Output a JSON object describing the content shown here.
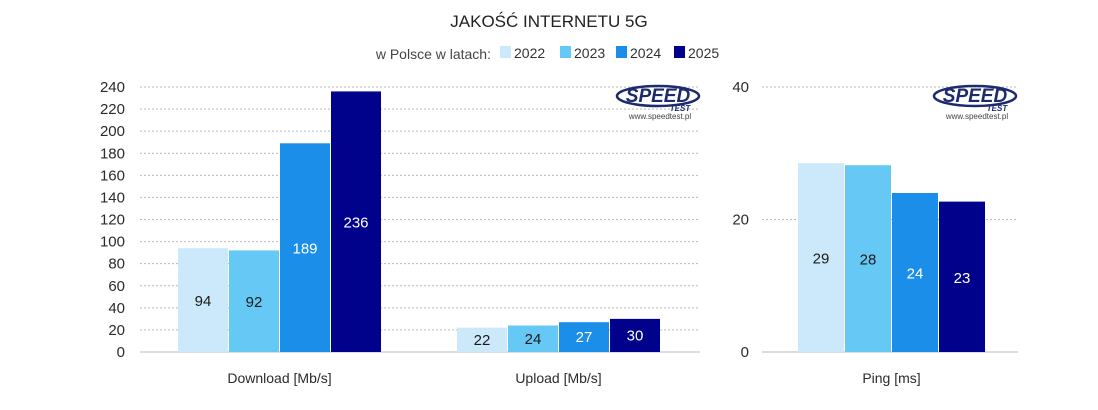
{
  "title": "JAKOŚĆ INTERNETU 5G",
  "subtitle": "w Polsce w latach:",
  "logo": {
    "text": "SPEED",
    "subtext": "TEST",
    "url": "www.speedtest.pl"
  },
  "colors": {
    "2022": "#cce9fb",
    "2023": "#66c8f5",
    "2024": "#1a8ee8",
    "2025": "#01028c"
  },
  "chart_data": [
    {
      "type": "bar",
      "category": "Download [Mb/s]",
      "ylim": [
        0,
        240
      ],
      "yticks": [
        "0",
        "20",
        "40",
        "60",
        "80",
        "100",
        "120",
        "140",
        "160",
        "180",
        "200",
        "220",
        "240"
      ],
      "series": [
        {
          "name": "2022",
          "value": 94,
          "label": "94"
        },
        {
          "name": "2023",
          "value": 92,
          "label": "92"
        },
        {
          "name": "2024",
          "value": 189,
          "label": "189"
        },
        {
          "name": "2025",
          "value": 236,
          "label": "236"
        }
      ]
    },
    {
      "type": "bar",
      "category": "Upload [Mb/s]",
      "ylim": [
        0,
        240
      ],
      "series": [
        {
          "name": "2022",
          "value": 22,
          "label": "22"
        },
        {
          "name": "2023",
          "value": 24,
          "label": "24"
        },
        {
          "name": "2024",
          "value": 27,
          "label": "27"
        },
        {
          "name": "2025",
          "value": 30,
          "label": "30"
        }
      ]
    },
    {
      "type": "bar",
      "category": "Ping [ms]",
      "ylim": [
        0,
        40
      ],
      "yticks": [
        "0",
        "20",
        "40"
      ],
      "series": [
        {
          "name": "2022",
          "value": 28.5,
          "label": "29"
        },
        {
          "name": "2023",
          "value": 28.2,
          "label": "28"
        },
        {
          "name": "2024",
          "value": 24,
          "label": "24"
        },
        {
          "name": "2025",
          "value": 22.7,
          "label": "23"
        }
      ]
    }
  ]
}
